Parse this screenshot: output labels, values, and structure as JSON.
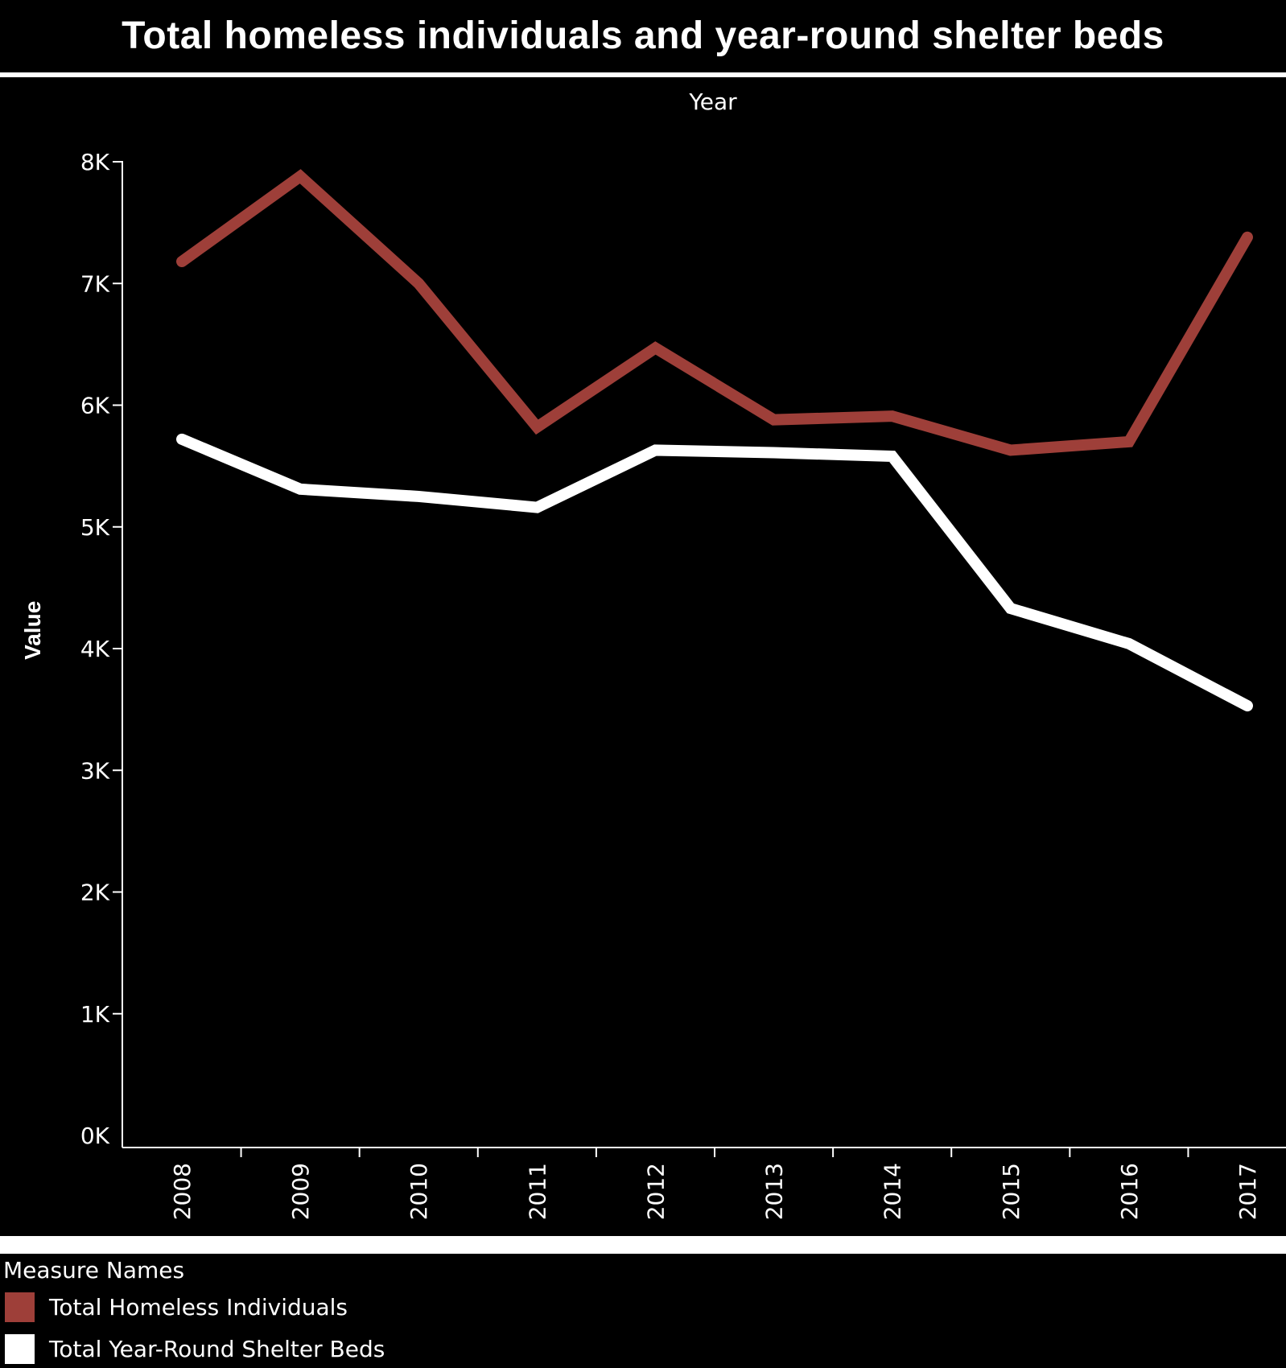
{
  "title": "Total homeless individuals and year-round shelter beds",
  "colors": {
    "background": "#000000",
    "axis": "#ffffff",
    "homeless": "#9e3f39",
    "beds": "#ffffff"
  },
  "legend": {
    "title": "Measure Names",
    "position": "bottom-left"
  },
  "chart_data": {
    "type": "line",
    "title": "Total homeless individuals and year-round shelter beds",
    "xlabel": "Year",
    "ylabel": "Value",
    "x": [
      "2008",
      "2009",
      "2010",
      "2011",
      "2012",
      "2013",
      "2014",
      "2015",
      "2016",
      "2017"
    ],
    "ylim": [
      0,
      8300
    ],
    "yticks": [
      0,
      1000,
      2000,
      3000,
      4000,
      5000,
      6000,
      7000,
      8000
    ],
    "ytick_labels": [
      "0K",
      "1K",
      "2K",
      "3K",
      "4K",
      "5K",
      "6K",
      "7K",
      "8K"
    ],
    "grid": false,
    "series": [
      {
        "name": "Total Homeless Individuals",
        "color": "#9e3f39",
        "values": [
          7180,
          7880,
          7000,
          5820,
          6470,
          5880,
          5910,
          5630,
          5700,
          7380
        ]
      },
      {
        "name": "Total Year-Round Shelter Beds",
        "color": "#ffffff",
        "values": [
          5720,
          5310,
          5250,
          5160,
          5630,
          5610,
          5580,
          4330,
          4040,
          3530
        ]
      }
    ]
  }
}
